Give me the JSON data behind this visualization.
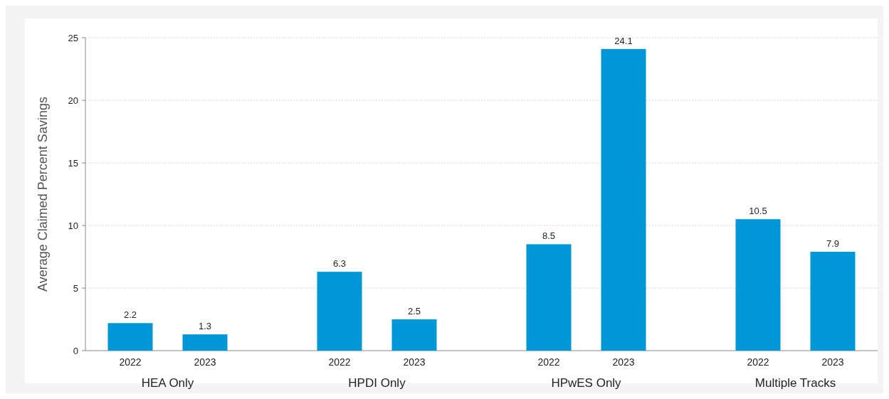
{
  "chart_data": {
    "type": "bar",
    "ylabel": "Average Claimed Percent Savings",
    "categories": [
      "2022",
      "2023",
      "2022",
      "2023",
      "2022",
      "2023",
      "2022",
      "2023"
    ],
    "values": [
      2.2,
      1.3,
      6.3,
      2.5,
      8.5,
      24.1,
      10.5,
      7.9
    ],
    "color": "#0097d7",
    "ylim": [
      0,
      25
    ],
    "yticks": [
      0,
      5,
      10,
      15,
      20,
      25
    ],
    "grid": "y",
    "data_labels": true,
    "annotations": [
      "HEA Only",
      "HPDI Only",
      "HPwES Only",
      "Multiple Tracks"
    ]
  }
}
